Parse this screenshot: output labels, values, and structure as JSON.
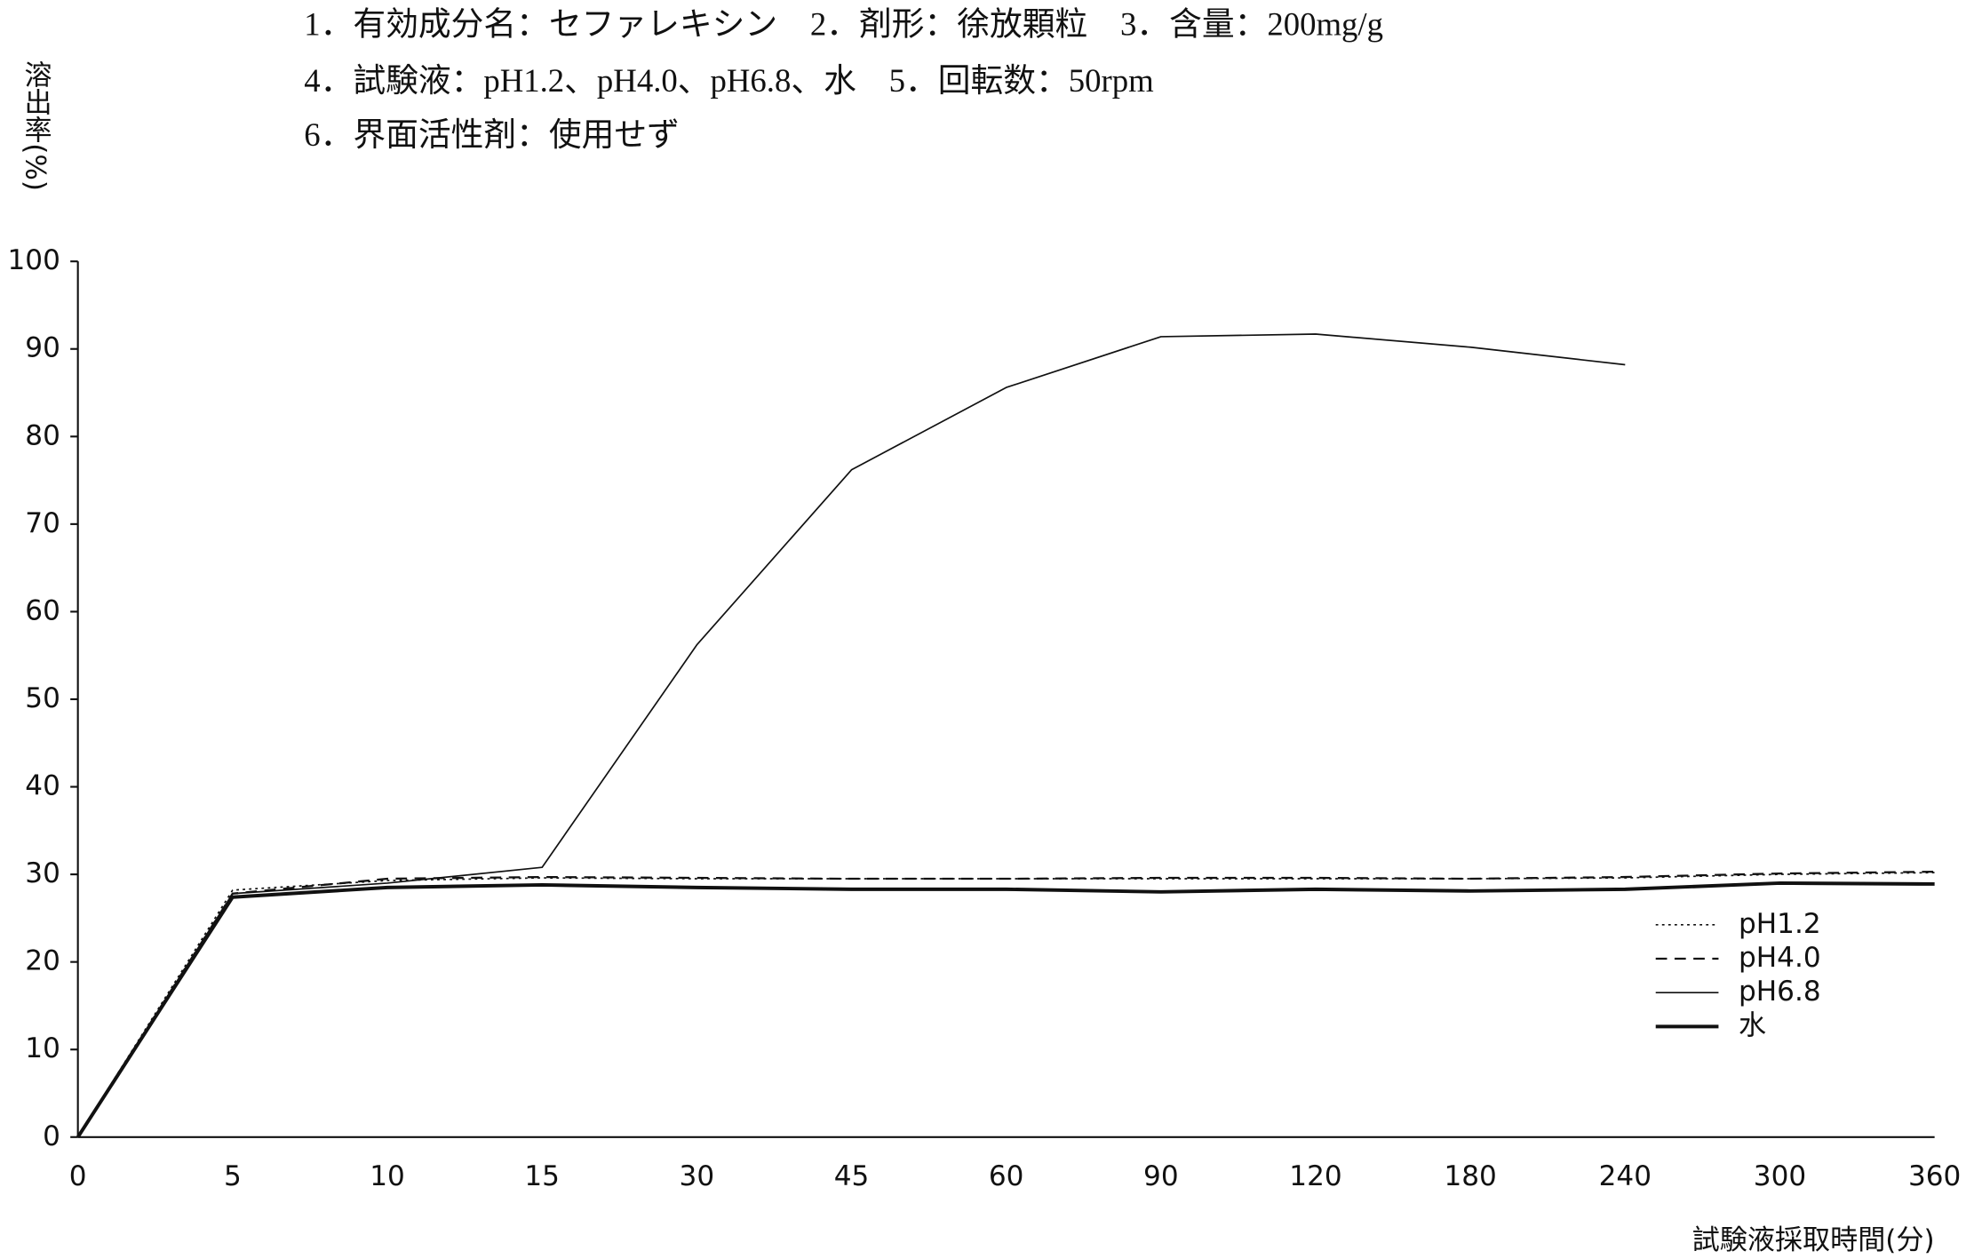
{
  "chart_data": {
    "type": "line",
    "notes": [
      "1．有効成分名：セファレキシン　2．剤形：徐放顆粒　3．含量：200mg/g",
      "4．試験液：pH1.2、pH4.0、pH6.8、水　5．回転数：50rpm",
      "6．界面活性剤：使用せず"
    ],
    "y_label": "溶出率(%)",
    "x_label": "試験液採取時間(分)",
    "categories": [
      "0",
      "5",
      "10",
      "15",
      "30",
      "45",
      "60",
      "90",
      "120",
      "180",
      "240",
      "300",
      "360"
    ],
    "series": [
      {
        "name": "pH1.2",
        "color": "#111111",
        "dash": "dotted",
        "width": 1.2,
        "values": [
          0,
          28.2,
          29.3,
          29.6,
          29.5,
          29.5,
          29.5,
          29.5,
          29.5,
          29.5,
          29.6,
          30.0,
          30.2
        ]
      },
      {
        "name": "pH4.0",
        "color": "#111111",
        "dash": "dashed",
        "width": 1.6,
        "values": [
          0,
          27.8,
          29.5,
          29.7,
          29.6,
          29.5,
          29.5,
          29.6,
          29.6,
          29.5,
          29.7,
          30.1,
          30.3
        ]
      },
      {
        "name": "pH6.8",
        "color": "#111111",
        "dash": "solid",
        "width": 1.2,
        "values": [
          0,
          27.8,
          29.0,
          30.8,
          56.2,
          76.2,
          85.6,
          91.4,
          91.7,
          90.2,
          88.2,
          null,
          null
        ]
      },
      {
        "name": "水",
        "color": "#111111",
        "dash": "solid",
        "width": 2.8,
        "values": [
          0,
          27.4,
          28.5,
          28.8,
          28.5,
          28.3,
          28.3,
          28.0,
          28.3,
          28.1,
          28.3,
          29.0,
          28.9
        ]
      }
    ],
    "ylim": [
      0,
      100
    ],
    "yticks": [
      0,
      10,
      20,
      30,
      40,
      50,
      60,
      70,
      80,
      90,
      100
    ],
    "legend": "lower right"
  }
}
